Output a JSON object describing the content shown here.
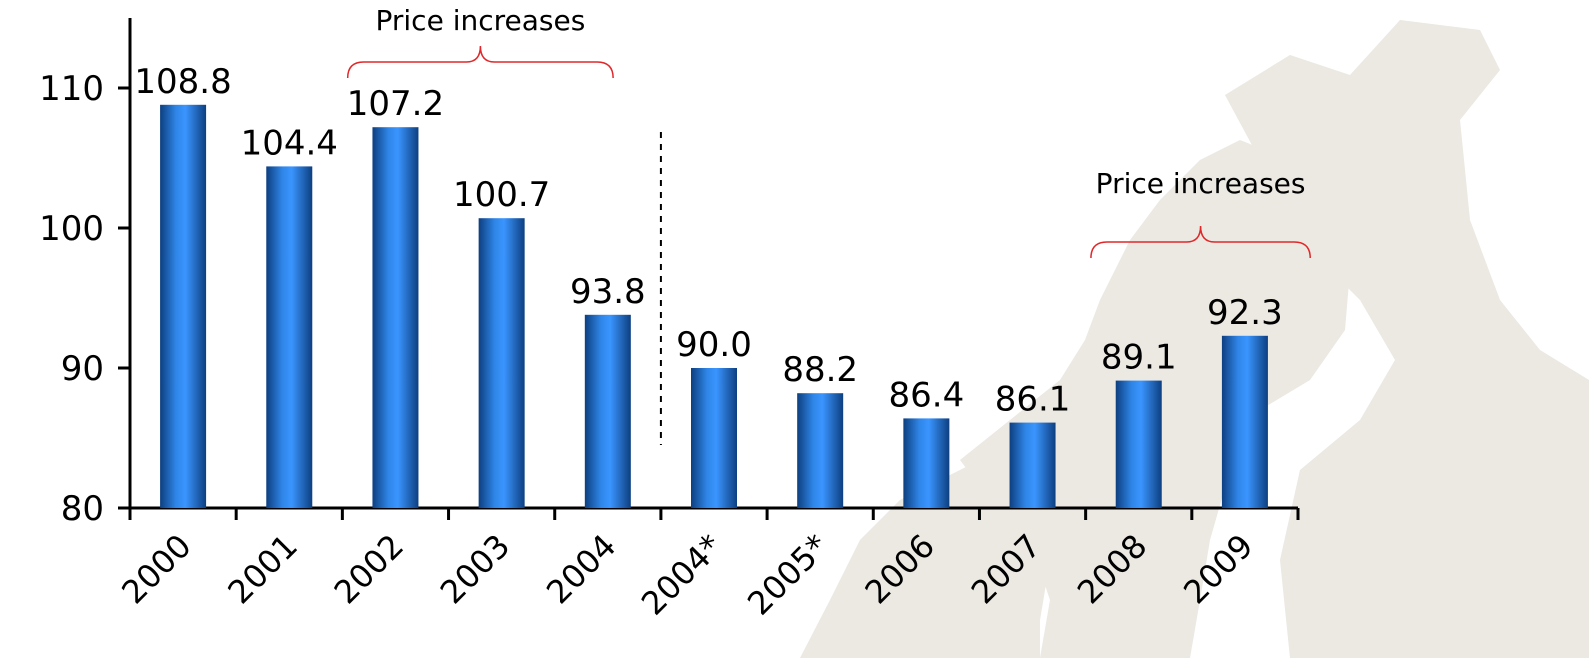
{
  "chart_data": {
    "type": "bar",
    "categories": [
      "2000",
      "2001",
      "2002",
      "2003",
      "2004",
      "2004*",
      "2005*",
      "2006",
      "2007",
      "2008",
      "2009"
    ],
    "values": [
      108.8,
      104.4,
      107.2,
      100.7,
      93.8,
      90.0,
      88.2,
      86.4,
      86.1,
      89.1,
      92.3
    ],
    "value_labels": [
      "108.8",
      "104.4",
      "107.2",
      "100.7",
      "93.8",
      "90.0",
      "88.2",
      "86.4",
      "86.1",
      "89.1",
      "92.3"
    ],
    "title": "",
    "xlabel": "",
    "ylabel": "",
    "ylim": [
      80,
      110
    ],
    "yticks": [
      "80",
      "90",
      "100",
      "110"
    ],
    "grid": false,
    "legend": "none",
    "bar_color": "#2f86e8",
    "bar_color_dark": "#0d3f80",
    "annotations": [
      {
        "text": "Price increases",
        "from_category": "2002",
        "to_category": "2004",
        "color": "#e0282a"
      },
      {
        "text": "Price increases",
        "from_category": "2008",
        "to_category": "2009",
        "color": "#e0282a"
      }
    ],
    "break_after_category": "2004",
    "background_map_color": "#ece8e2"
  }
}
